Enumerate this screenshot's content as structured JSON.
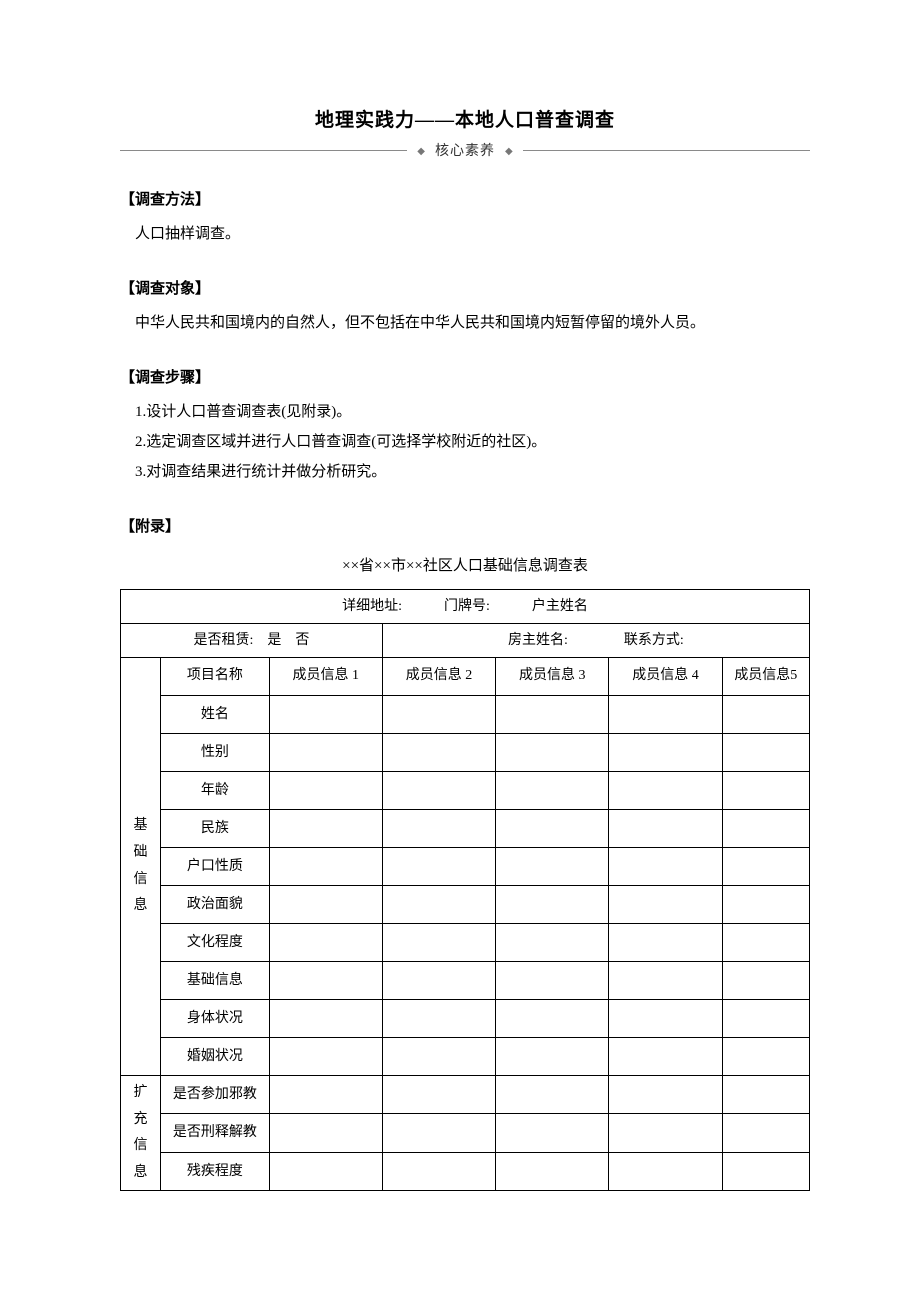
{
  "title": "地理实践力——本地人口普查调查",
  "subtitle": "核心素养",
  "sections": {
    "method": {
      "head": "【调查方法】",
      "text": "人口抽样调查。"
    },
    "subject": {
      "head": "【调查对象】",
      "text": "中华人民共和国境内的自然人，但不包括在中华人民共和国境内短暂停留的境外人员。"
    },
    "steps": {
      "head": "【调查步骤】",
      "items": [
        "1.设计人口普查调查表(见附录)。",
        "2.选定调查区域并进行人口普查调查(可选择学校附近的社区)。",
        "3.对调查结果进行统计并做分析研究。"
      ]
    },
    "appendix": {
      "head": "【附录】"
    }
  },
  "survey": {
    "title": "××省××市××社区人口基础信息调查表",
    "top_row": "详细地址:　　　门牌号:　　　户主姓名",
    "rent_row": "是否租赁:　是　否",
    "owner_row": "房主姓名:　　　　联系方式:",
    "col_headers": [
      "项目名称",
      "成员信息 1",
      "成员信息 2",
      "成员信息 3",
      "成员信息 4",
      "成员信息5"
    ],
    "group1_label": "基础信息",
    "group1_rows": [
      "姓名",
      "性别",
      "年龄",
      "民族",
      "户口性质",
      "政治面貌",
      "文化程度",
      "基础信息",
      "身体状况",
      "婚姻状况"
    ],
    "group2_label": "扩充信息",
    "group2_rows": [
      "是否参加邪教",
      "是否刑释解教",
      "残疾程度"
    ]
  },
  "style": {
    "page_bg": "#ffffff",
    "text_color": "#000000",
    "line_color": "#8a8a8a",
    "border_color": "#000000",
    "title_fontsize": 19,
    "body_fontsize": 15,
    "table_fontsize": 14
  }
}
